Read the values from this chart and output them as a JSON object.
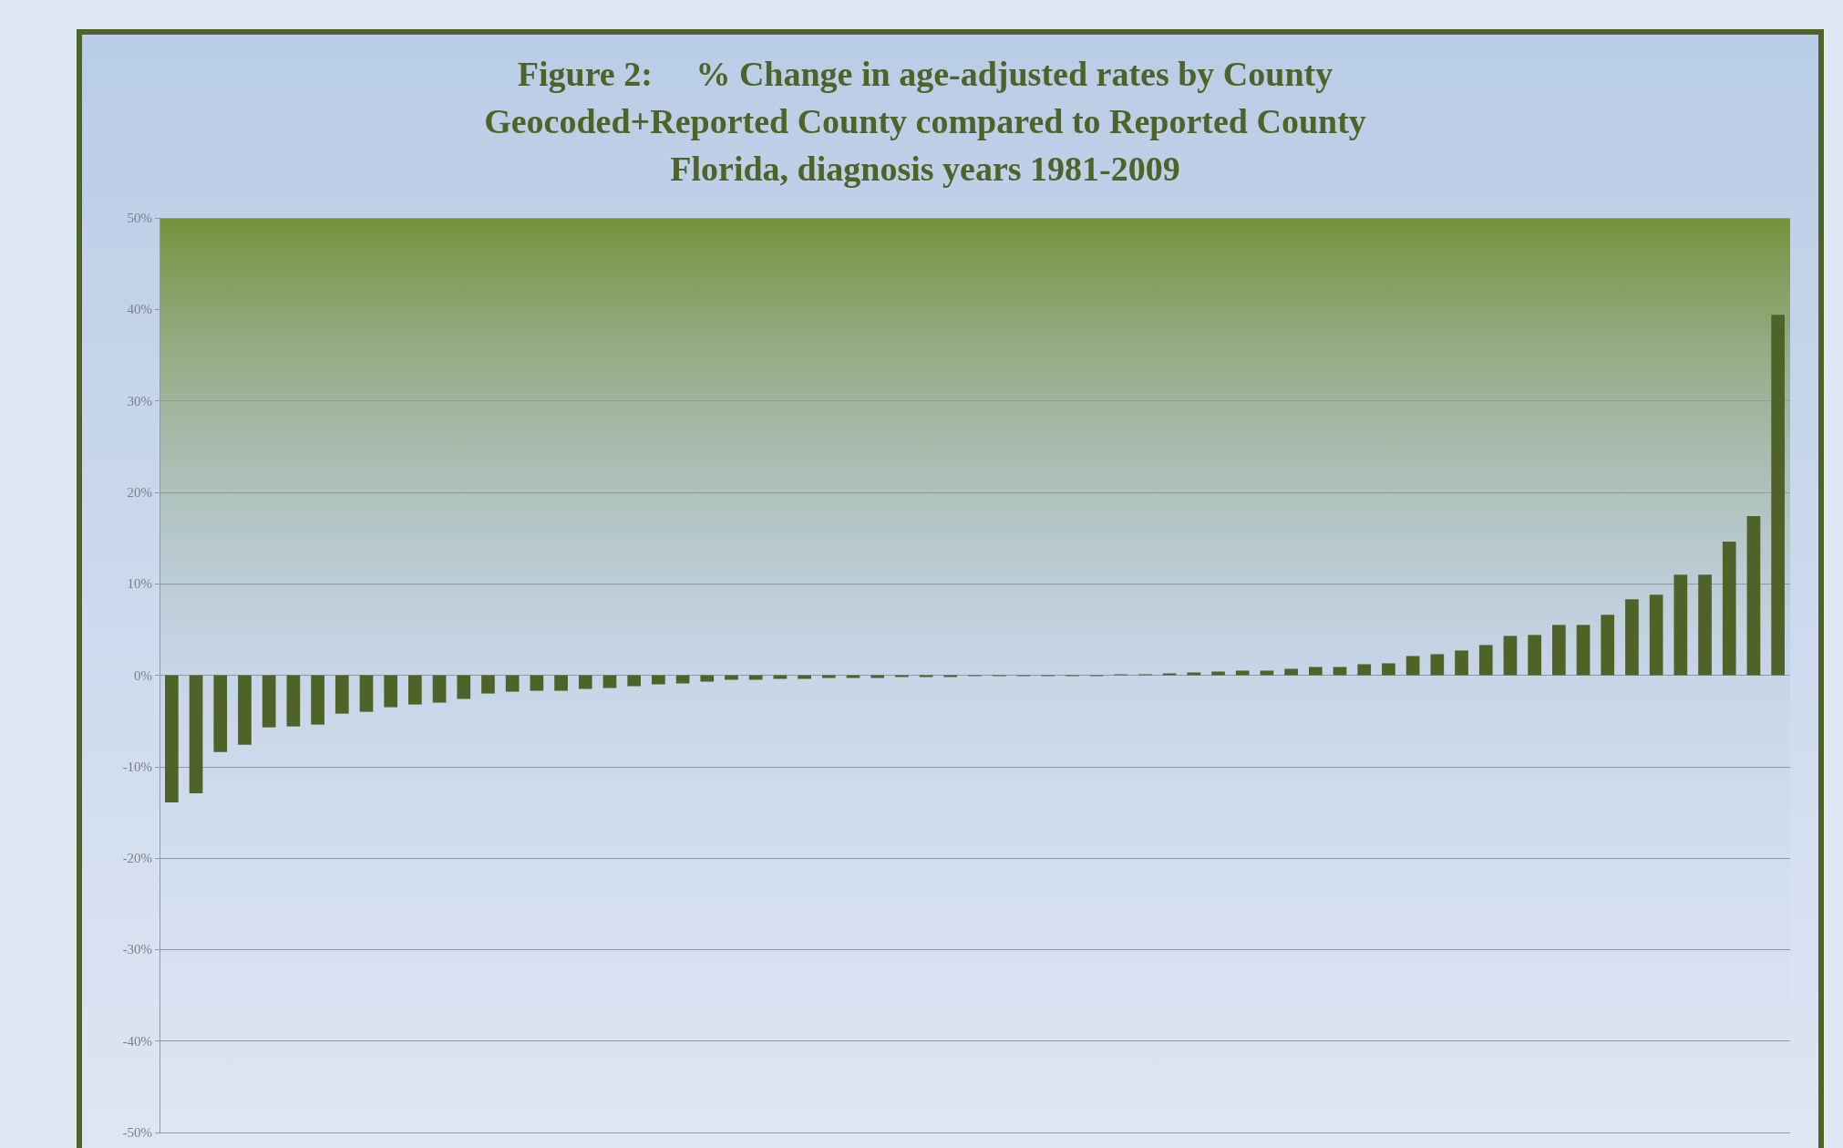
{
  "chart_data": {
    "type": "bar",
    "title": "Figure 2:     % Change in age-adjusted rates by County\nGeocoded+Reported County compared to Reported County\nFlorida, diagnosis years 1981-2009",
    "categories": [
      null,
      null,
      null,
      null,
      null,
      null,
      null,
      null,
      null,
      null,
      null,
      null,
      null,
      null,
      null,
      null,
      null,
      null,
      null,
      null,
      null,
      null,
      null,
      null,
      null,
      null,
      null,
      null,
      null,
      null,
      null,
      null,
      null,
      null,
      null,
      null,
      null,
      null,
      null,
      null,
      null,
      null,
      null,
      null,
      null,
      null,
      null,
      null,
      null,
      null,
      null,
      null,
      null,
      null,
      null,
      null,
      null,
      null,
      null,
      null,
      null,
      null,
      null,
      null,
      null,
      null,
      null
    ],
    "values": [
      -13.9,
      -12.9,
      -8.4,
      -7.6,
      -5.7,
      -5.6,
      -5.4,
      -4.2,
      -4.0,
      -3.5,
      -3.2,
      -3.0,
      -2.6,
      -2.0,
      -1.8,
      -1.7,
      -1.7,
      -1.5,
      -1.4,
      -1.2,
      -1.0,
      -0.9,
      -0.7,
      -0.5,
      -0.5,
      -0.4,
      -0.4,
      -0.3,
      -0.3,
      -0.3,
      -0.2,
      -0.2,
      -0.2,
      -0.1,
      -0.1,
      -0.1,
      -0.1,
      -0.1,
      -0.1,
      0.1,
      0.1,
      0.2,
      0.3,
      0.4,
      0.5,
      0.5,
      0.7,
      0.9,
      0.9,
      1.2,
      1.3,
      2.1,
      2.3,
      2.7,
      3.3,
      4.3,
      4.4,
      5.5,
      5.5,
      6.6,
      8.3,
      8.8,
      11.0,
      11.0,
      14.6,
      17.4,
      39.4
    ],
    "color": "#4f6228",
    "ylim": [
      -50,
      50
    ],
    "yticks": [
      {
        "value": -50,
        "label": "-50%"
      },
      {
        "value": -40,
        "label": "-40%"
      },
      {
        "value": -30,
        "label": "-30%"
      },
      {
        "value": -20,
        "label": "-20%"
      },
      {
        "value": -10,
        "label": "-10%"
      },
      {
        "value": 0,
        "label": "0%"
      },
      {
        "value": 10,
        "label": "10%"
      },
      {
        "value": 20,
        "label": "20%"
      },
      {
        "value": 30,
        "label": "30%"
      },
      {
        "value": 40,
        "label": "40%"
      },
      {
        "value": 50,
        "label": "50%"
      }
    ],
    "grid": "y",
    "tick_labels": "y"
  }
}
